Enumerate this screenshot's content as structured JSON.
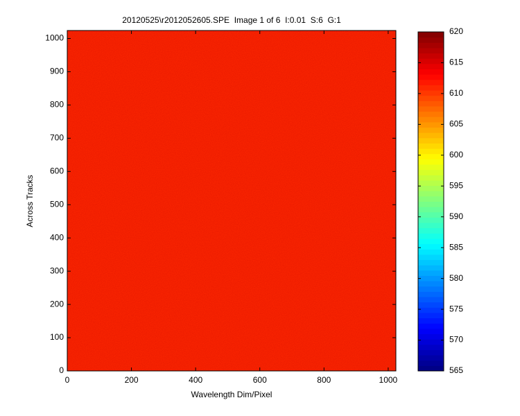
{
  "chart_data": {
    "type": "heatmap",
    "title": "20120525\\r2012052605.SPE  Image 1 of 6  I:0.01  S:6  G:1",
    "x_label": "Wavelength Dim/Pixel",
    "y_label": "Across Tracks",
    "values": [
      [
        611
      ]
    ],
    "xlim": [
      0,
      1024
    ],
    "xticks": [
      0,
      200,
      400,
      600,
      800,
      1000
    ],
    "ylim": [
      0,
      1024
    ],
    "yticks": [
      0,
      100,
      200,
      300,
      400,
      500,
      600,
      700,
      800,
      900,
      1000
    ],
    "colormap": "jet",
    "clim": [
      565,
      620
    ],
    "cticks": [
      565,
      570,
      575,
      580,
      585,
      590,
      595,
      600,
      605,
      610,
      615,
      620
    ]
  }
}
